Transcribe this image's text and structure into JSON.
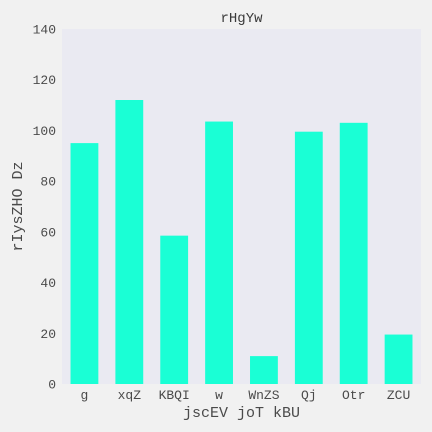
{
  "chart_data": {
    "type": "bar",
    "title": "rHgYw",
    "xlabel": "jscEV joT kBU",
    "ylabel": "rIysZHO Dz",
    "categories": [
      "g",
      "xqZ",
      "KBQI",
      "w",
      "WnZS",
      "Qj",
      "Otr",
      "ZCU"
    ],
    "values": [
      95,
      112,
      58.5,
      103.5,
      11,
      99.5,
      103,
      19.5
    ],
    "ylim": [
      0,
      140
    ],
    "yticks": [
      0,
      20,
      40,
      60,
      80,
      100,
      120,
      140
    ],
    "grid": false,
    "legend": "none",
    "colors": {
      "bar": "#1affd5",
      "plot_background": "#eaeaf2",
      "figure_background": "#f1f1f1",
      "text": "#4a4a4a"
    }
  }
}
